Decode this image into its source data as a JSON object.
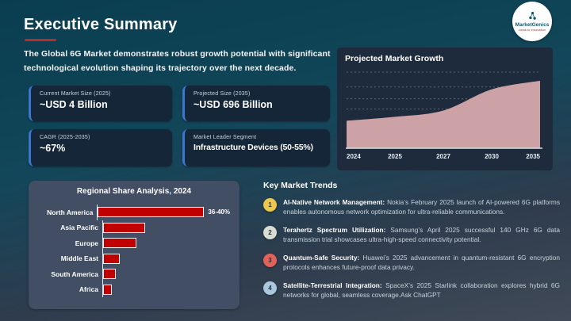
{
  "slide": {
    "title": "Executive Summary",
    "intro": "The Global 6G Market demonstrates robust growth potential with significant technological evolution shaping its trajectory over the next decade."
  },
  "logo": {
    "name": "MarketGenics",
    "tagline": "Ideas to Innovation"
  },
  "stats": [
    {
      "label": "Current Market Size (2025)",
      "value": "~USD 4 Billion"
    },
    {
      "label": "Projected Size (2035)",
      "value": "~USD 696 Billion"
    },
    {
      "label": "CAGR (2025-2035)",
      "value": "~67%"
    },
    {
      "label": "Market Leader Segment",
      "value": "Infrastructure Devices (50-55%)"
    }
  ],
  "chart_data": [
    {
      "type": "area",
      "title": "Projected Market Growth",
      "x": [
        "2024",
        "2025",
        "2027",
        "2030",
        "2035"
      ],
      "values": [
        35,
        40,
        48,
        75,
        86
      ],
      "ylim": [
        0,
        100
      ],
      "gridlines": [
        50,
        63,
        78,
        97
      ],
      "fill_color": "#cda2a7",
      "xlabel": "",
      "ylabel": "",
      "legend": "none",
      "grid": "dashed-horizontal"
    },
    {
      "type": "bar",
      "title": "Regional Share Analysis, 2024",
      "orientation": "horizontal",
      "categories": [
        "North America",
        "Asia Pacific",
        "Europe",
        "Middle East",
        "South America",
        "Africa"
      ],
      "values": [
        38,
        15,
        12,
        6,
        4.5,
        3
      ],
      "data_labels": [
        "36-40%",
        "",
        "",
        "",
        "",
        ""
      ],
      "bar_color": "#c00000",
      "xlim": [
        0,
        40
      ]
    }
  ],
  "trends": {
    "heading": "Key Market Trends",
    "items": [
      {
        "num": "1",
        "color": "#ecc94e",
        "title": "AI-Native Network Management:",
        "text": "Nokia’s February 2025 launch of AI-powered 6G platforms enables autonomous network optimization for ultra-reliable communications."
      },
      {
        "num": "2",
        "color": "#d8ddd1",
        "title": "Terahertz Spectrum Utilization:",
        "text": "Samsung’s April 2025 successful 140 GHz 6G data transmission trial showcases ultra-high-speed connectivity potential."
      },
      {
        "num": "3",
        "color": "#e2625a",
        "title": "Quantum-Safe Security:",
        "text": "Huawei’s 2025 advancement in quantum-resistant 6G encryption protocols enhances future-proof data privacy."
      },
      {
        "num": "4",
        "color": "#a9c8dd",
        "title": "Satellite-Terrestrial Integration:",
        "text": "SpaceX’s 2025 Starlink collaboration explores hybrid 6G networks for global, seamless coverage.Ask ChatGPT"
      }
    ]
  }
}
